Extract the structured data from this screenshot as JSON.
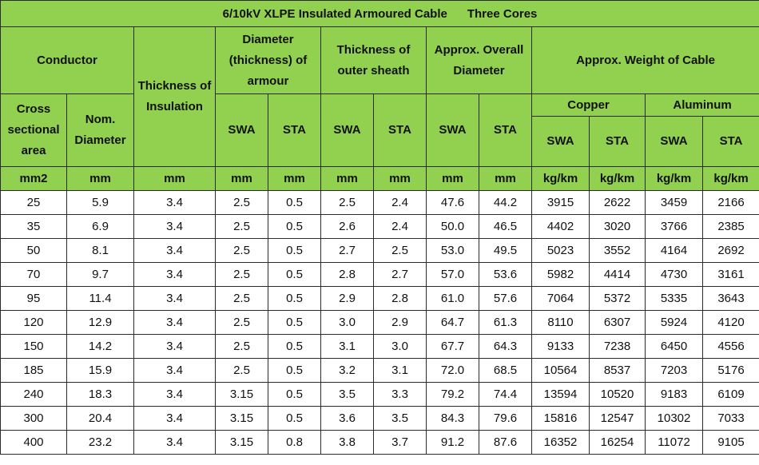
{
  "title": "6/10kV XLPE Insulated Armoured Cable      Three Cores",
  "headers": {
    "conductor": "Conductor",
    "thickness_insulation": "Thickness of Insulation",
    "armour_diameter": "Diameter (thickness) of armour",
    "outer_sheath": "Thickness of outer sheath",
    "overall_diameter": "Approx. Overall Diameter",
    "weight": "Approx. Weight of Cable",
    "cross_section": "Cross sectional area",
    "nom_diameter": "Nom. Diameter",
    "copper": "Copper",
    "aluminum": "Aluminum",
    "swa": "SWA",
    "sta": "STA"
  },
  "units": [
    "mm2",
    "mm",
    "mm",
    "mm",
    "mm",
    "mm",
    "mm",
    "mm",
    "mm",
    "kg/km",
    "kg/km",
    "kg/km",
    "kg/km"
  ],
  "rows": [
    [
      "25",
      "5.9",
      "3.4",
      "2.5",
      "0.5",
      "2.5",
      "2.4",
      "47.6",
      "44.2",
      "3915",
      "2622",
      "3459",
      "2166"
    ],
    [
      "35",
      "6.9",
      "3.4",
      "2.5",
      "0.5",
      "2.6",
      "2.4",
      "50.0",
      "46.5",
      "4402",
      "3020",
      "3766",
      "2385"
    ],
    [
      "50",
      "8.1",
      "3.4",
      "2.5",
      "0.5",
      "2.7",
      "2.5",
      "53.0",
      "49.5",
      "5023",
      "3552",
      "4164",
      "2692"
    ],
    [
      "70",
      "9.7",
      "3.4",
      "2.5",
      "0.5",
      "2.8",
      "2.7",
      "57.0",
      "53.6",
      "5982",
      "4414",
      "4730",
      "3161"
    ],
    [
      "95",
      "11.4",
      "3.4",
      "2.5",
      "0.5",
      "2.9",
      "2.8",
      "61.0",
      "57.6",
      "7064",
      "5372",
      "5335",
      "3643"
    ],
    [
      "120",
      "12.9",
      "3.4",
      "2.5",
      "0.5",
      "3.0",
      "2.9",
      "64.7",
      "61.3",
      "8110",
      "6307",
      "5924",
      "4120"
    ],
    [
      "150",
      "14.2",
      "3.4",
      "2.5",
      "0.5",
      "3.1",
      "3.0",
      "67.7",
      "64.3",
      "9133",
      "7238",
      "6450",
      "4556"
    ],
    [
      "185",
      "15.9",
      "3.4",
      "2.5",
      "0.5",
      "3.2",
      "3.1",
      "72.0",
      "68.5",
      "10564",
      "8537",
      "7203",
      "5176"
    ],
    [
      "240",
      "18.3",
      "3.4",
      "3.15",
      "0.5",
      "3.5",
      "3.3",
      "79.2",
      "74.4",
      "13594",
      "10520",
      "9183",
      "6109"
    ],
    [
      "300",
      "20.4",
      "3.4",
      "3.15",
      "0.5",
      "3.6",
      "3.5",
      "84.3",
      "79.6",
      "15816",
      "12547",
      "10302",
      "7033"
    ],
    [
      "400",
      "23.2",
      "3.4",
      "3.15",
      "0.8",
      "3.8",
      "3.7",
      "91.2",
      "87.6",
      "16352",
      "16254",
      "11072",
      "9105"
    ]
  ],
  "colors": {
    "header_bg": "#92d050",
    "border": "#2b2b2b",
    "cell_bg": "#ffffff"
  }
}
